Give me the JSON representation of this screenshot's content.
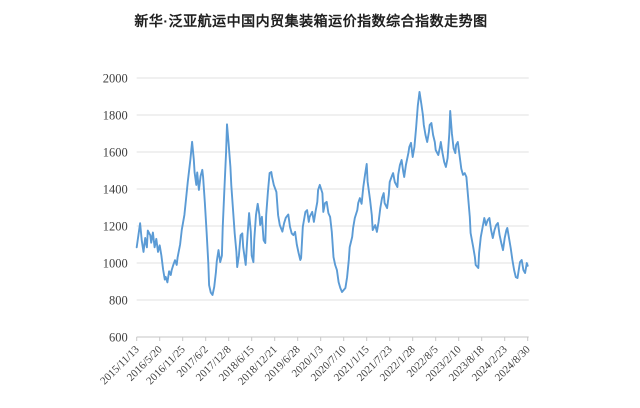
{
  "title": "新华·泛亚航运中国内贸集装箱运价指数综合指数走势图",
  "chart_data": {
    "type": "line",
    "title": "新华·泛亚航运中国内贸集装箱运价指数综合指数走势图",
    "series_name": "综合指数",
    "line_color": "#5B9BD5",
    "grid_color": "#E0E0E0",
    "axis_color": "#C6C6C6",
    "label_color": "#3F3F3F",
    "grid": true,
    "legend": "none",
    "ylim": [
      600,
      2000
    ],
    "y_ticks": [
      600,
      800,
      1000,
      1200,
      1400,
      1600,
      1800,
      2000
    ],
    "x_unit": "weeks since first tick",
    "x_range": [
      0,
      459
    ],
    "x_tick_weeks": [
      0,
      27,
      54,
      81,
      108,
      135,
      162,
      189,
      216,
      243,
      270,
      297,
      324,
      351,
      378,
      405,
      432,
      459
    ],
    "x_tick_labels": [
      "2015/11/13",
      "2016/5/20",
      "2016/11/25",
      "2017/6/2",
      "2017/12/8",
      "2018/6/15",
      "2018/12/21",
      "2019/6/28",
      "2020/1/3",
      "2020/7/10",
      "2021/1/15",
      "2021/7/23",
      "2022/1/28",
      "2022/8/5",
      "2023/2/10",
      "2023/8/18",
      "2024/2/23",
      "2024/8/30"
    ],
    "points": [
      [
        0,
        1085
      ],
      [
        2,
        1150
      ],
      [
        4,
        1215
      ],
      [
        6,
        1120
      ],
      [
        8,
        1060
      ],
      [
        10,
        1135
      ],
      [
        12,
        1085
      ],
      [
        13,
        1175
      ],
      [
        16,
        1150
      ],
      [
        17,
        1110
      ],
      [
        19,
        1165
      ],
      [
        21,
        1085
      ],
      [
        23,
        1130
      ],
      [
        25,
        1060
      ],
      [
        27,
        1095
      ],
      [
        29,
        1040
      ],
      [
        31,
        965
      ],
      [
        33,
        910
      ],
      [
        34,
        925
      ],
      [
        36,
        895
      ],
      [
        38,
        955
      ],
      [
        40,
        935
      ],
      [
        41,
        960
      ],
      [
        43,
        990
      ],
      [
        45,
        1015
      ],
      [
        47,
        990
      ],
      [
        48,
        1030
      ],
      [
        51,
        1100
      ],
      [
        53,
        1180
      ],
      [
        56,
        1260
      ],
      [
        58,
        1350
      ],
      [
        60,
        1440
      ],
      [
        63,
        1560
      ],
      [
        65,
        1655
      ],
      [
        67,
        1560
      ],
      [
        68,
        1490
      ],
      [
        70,
        1422
      ],
      [
        71,
        1490
      ],
      [
        73,
        1395
      ],
      [
        75,
        1470
      ],
      [
        77,
        1503
      ],
      [
        78,
        1465
      ],
      [
        80,
        1330
      ],
      [
        82,
        1168
      ],
      [
        84,
        1000
      ],
      [
        85,
        880
      ],
      [
        87,
        840
      ],
      [
        89,
        827
      ],
      [
        91,
        870
      ],
      [
        93,
        950
      ],
      [
        94,
        1010
      ],
      [
        96,
        1070
      ],
      [
        98,
        1005
      ],
      [
        100,
        1040
      ],
      [
        101,
        1190
      ],
      [
        103,
        1400
      ],
      [
        105,
        1600
      ],
      [
        106,
        1750
      ],
      [
        108,
        1640
      ],
      [
        110,
        1520
      ],
      [
        111,
        1420
      ],
      [
        113,
        1290
      ],
      [
        115,
        1160
      ],
      [
        117,
        1060
      ],
      [
        118,
        978
      ],
      [
        120,
        1040
      ],
      [
        122,
        1150
      ],
      [
        124,
        1160
      ],
      [
        125,
        1085
      ],
      [
        127,
        1020
      ],
      [
        128,
        990
      ],
      [
        130,
        1140
      ],
      [
        132,
        1270
      ],
      [
        134,
        1170
      ],
      [
        135,
        1040
      ],
      [
        137,
        1005
      ],
      [
        138,
        1130
      ],
      [
        140,
        1260
      ],
      [
        142,
        1320
      ],
      [
        144,
        1260
      ],
      [
        145,
        1205
      ],
      [
        147,
        1250
      ],
      [
        149,
        1124
      ],
      [
        151,
        1108
      ],
      [
        152,
        1260
      ],
      [
        154,
        1384
      ],
      [
        156,
        1486
      ],
      [
        158,
        1492
      ],
      [
        159,
        1465
      ],
      [
        161,
        1422
      ],
      [
        164,
        1384
      ],
      [
        166,
        1259
      ],
      [
        168,
        1205
      ],
      [
        171,
        1170
      ],
      [
        173,
        1215
      ],
      [
        175,
        1245
      ],
      [
        178,
        1262
      ],
      [
        180,
        1195
      ],
      [
        182,
        1160
      ],
      [
        184,
        1151
      ],
      [
        186,
        1168
      ],
      [
        188,
        1100
      ],
      [
        190,
        1054
      ],
      [
        192,
        1016
      ],
      [
        193,
        1027
      ],
      [
        195,
        1195
      ],
      [
        198,
        1276
      ],
      [
        200,
        1286
      ],
      [
        202,
        1222
      ],
      [
        203,
        1249
      ],
      [
        206,
        1276
      ],
      [
        208,
        1222
      ],
      [
        210,
        1280
      ],
      [
        212,
        1330
      ],
      [
        213,
        1395
      ],
      [
        215,
        1422
      ],
      [
        218,
        1378
      ],
      [
        219,
        1276
      ],
      [
        221,
        1324
      ],
      [
        223,
        1330
      ],
      [
        225,
        1270
      ],
      [
        227,
        1249
      ],
      [
        229,
        1168
      ],
      [
        231,
        1032
      ],
      [
        233,
        989
      ],
      [
        235,
        962
      ],
      [
        237,
        897
      ],
      [
        239,
        865
      ],
      [
        241,
        843
      ],
      [
        243,
        854
      ],
      [
        245,
        865
      ],
      [
        247,
        924
      ],
      [
        249,
        1016
      ],
      [
        250,
        1086
      ],
      [
        253,
        1141
      ],
      [
        254,
        1189
      ],
      [
        256,
        1243
      ],
      [
        259,
        1286
      ],
      [
        260,
        1324
      ],
      [
        262,
        1351
      ],
      [
        264,
        1320
      ],
      [
        266,
        1411
      ],
      [
        268,
        1476
      ],
      [
        270,
        1535
      ],
      [
        271,
        1440
      ],
      [
        274,
        1340
      ],
      [
        276,
        1259
      ],
      [
        277,
        1178
      ],
      [
        280,
        1205
      ],
      [
        282,
        1168
      ],
      [
        284,
        1222
      ],
      [
        286,
        1297
      ],
      [
        288,
        1351
      ],
      [
        290,
        1378
      ],
      [
        291,
        1324
      ],
      [
        294,
        1297
      ],
      [
        296,
        1368
      ],
      [
        297,
        1438
      ],
      [
        300,
        1476
      ],
      [
        301,
        1486
      ],
      [
        303,
        1438
      ],
      [
        306,
        1411
      ],
      [
        307,
        1476
      ],
      [
        309,
        1530
      ],
      [
        311,
        1557
      ],
      [
        313,
        1492
      ],
      [
        314,
        1465
      ],
      [
        316,
        1530
      ],
      [
        319,
        1595
      ],
      [
        320,
        1627
      ],
      [
        322,
        1649
      ],
      [
        324,
        1573
      ],
      [
        326,
        1627
      ],
      [
        328,
        1730
      ],
      [
        330,
        1850
      ],
      [
        332,
        1925
      ],
      [
        334,
        1865
      ],
      [
        336,
        1800
      ],
      [
        337,
        1746
      ],
      [
        339,
        1692
      ],
      [
        341,
        1654
      ],
      [
        343,
        1708
      ],
      [
        344,
        1746
      ],
      [
        346,
        1757
      ],
      [
        348,
        1692
      ],
      [
        350,
        1654
      ],
      [
        351,
        1611
      ],
      [
        354,
        1584
      ],
      [
        356,
        1627
      ],
      [
        357,
        1654
      ],
      [
        359,
        1595
      ],
      [
        361,
        1546
      ],
      [
        363,
        1519
      ],
      [
        365,
        1567
      ],
      [
        367,
        1700
      ],
      [
        368,
        1822
      ],
      [
        370,
        1700
      ],
      [
        372,
        1620
      ],
      [
        374,
        1594
      ],
      [
        375,
        1638
      ],
      [
        377,
        1654
      ],
      [
        379,
        1580
      ],
      [
        381,
        1510
      ],
      [
        383,
        1476
      ],
      [
        385,
        1486
      ],
      [
        387,
        1465
      ],
      [
        389,
        1357
      ],
      [
        391,
        1249
      ],
      [
        392,
        1162
      ],
      [
        395,
        1086
      ],
      [
        397,
        1032
      ],
      [
        398,
        989
      ],
      [
        401,
        973
      ],
      [
        402,
        1054
      ],
      [
        404,
        1141
      ],
      [
        407,
        1216
      ],
      [
        408,
        1243
      ],
      [
        410,
        1205
      ],
      [
        412,
        1232
      ],
      [
        414,
        1243
      ],
      [
        416,
        1178
      ],
      [
        418,
        1135
      ],
      [
        420,
        1178
      ],
      [
        422,
        1205
      ],
      [
        424,
        1216
      ],
      [
        426,
        1151
      ],
      [
        428,
        1108
      ],
      [
        430,
        1070
      ],
      [
        432,
        1135
      ],
      [
        434,
        1178
      ],
      [
        435,
        1189
      ],
      [
        437,
        1135
      ],
      [
        439,
        1081
      ],
      [
        441,
        1016
      ],
      [
        443,
        962
      ],
      [
        445,
        924
      ],
      [
        447,
        919
      ],
      [
        449,
        978
      ],
      [
        450,
        1005
      ],
      [
        452,
        1016
      ],
      [
        454,
        962
      ],
      [
        456,
        946
      ],
      [
        458,
        1000
      ],
      [
        459,
        985
      ]
    ]
  }
}
